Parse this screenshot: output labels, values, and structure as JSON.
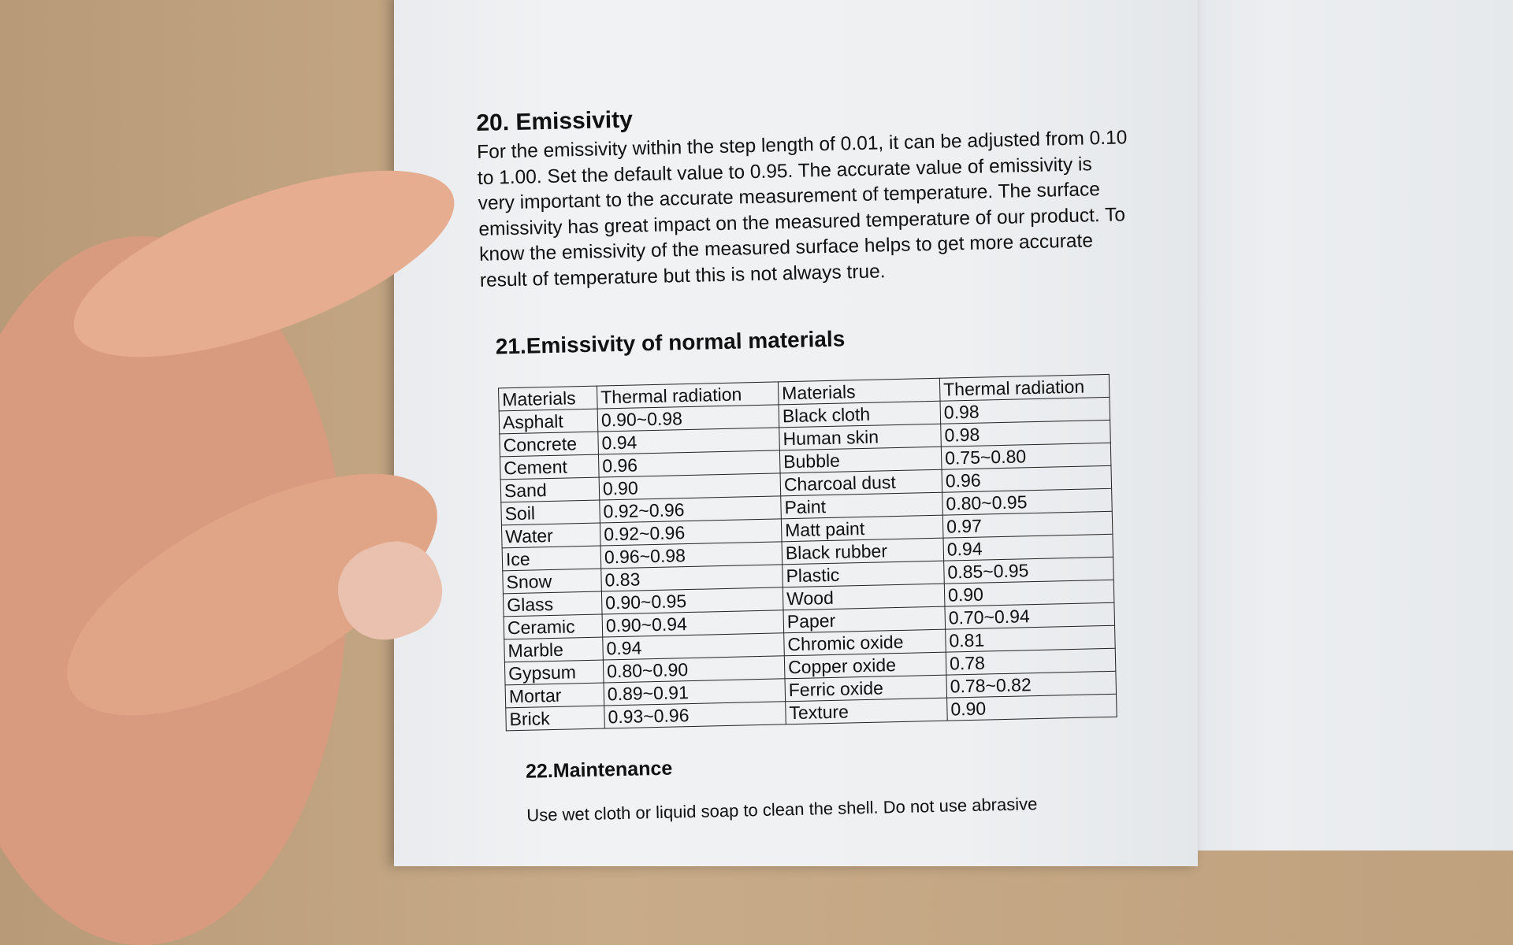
{
  "section20": {
    "title": "20. Emissivity",
    "body": "For the emissivity within the step length of 0.01, it can be adjusted from 0.10 to 1.00. Set the default value to 0.95. The accurate value of emissivity is very important to the accurate measurement of temperature. The surface emissivity has great impact on the measured temperature of our product. To know the emissivity of the measured surface helps to get more accurate result of temperature but this is not always true."
  },
  "section21": {
    "title": "21.Emissivity of normal materials",
    "headers": [
      "Materials",
      "Thermal radiation",
      "Materials",
      "Thermal radiation"
    ],
    "rows": [
      [
        "Asphalt",
        "0.90~0.98",
        "Black cloth",
        "0.98"
      ],
      [
        "Concrete",
        "0.94",
        "Human skin",
        "0.98"
      ],
      [
        "Cement",
        "0.96",
        "Bubble",
        "0.75~0.80"
      ],
      [
        "Sand",
        "0.90",
        "Charcoal dust",
        "0.96"
      ],
      [
        "Soil",
        "0.92~0.96",
        "Paint",
        "0.80~0.95"
      ],
      [
        "Water",
        "0.92~0.96",
        "Matt paint",
        "0.97"
      ],
      [
        "Ice",
        "0.96~0.98",
        "Black rubber",
        "0.94"
      ],
      [
        "Snow",
        "0.83",
        "Plastic",
        "0.85~0.95"
      ],
      [
        "Glass",
        "0.90~0.95",
        "Wood",
        "0.90"
      ],
      [
        "Ceramic",
        "0.90~0.94",
        "Paper",
        "0.70~0.94"
      ],
      [
        "Marble",
        "0.94",
        "Chromic oxide",
        "0.81"
      ],
      [
        "Gypsum",
        "0.80~0.90",
        "Copper oxide",
        "0.78"
      ],
      [
        "Mortar",
        "0.89~0.91",
        "Ferric oxide",
        "0.78~0.82"
      ],
      [
        "Brick",
        "0.93~0.96",
        "Texture",
        "0.90"
      ]
    ]
  },
  "section22": {
    "title": "22.Maintenance",
    "body": "Use wet cloth or liquid soap to clean the shell. Do not use abrasive"
  }
}
